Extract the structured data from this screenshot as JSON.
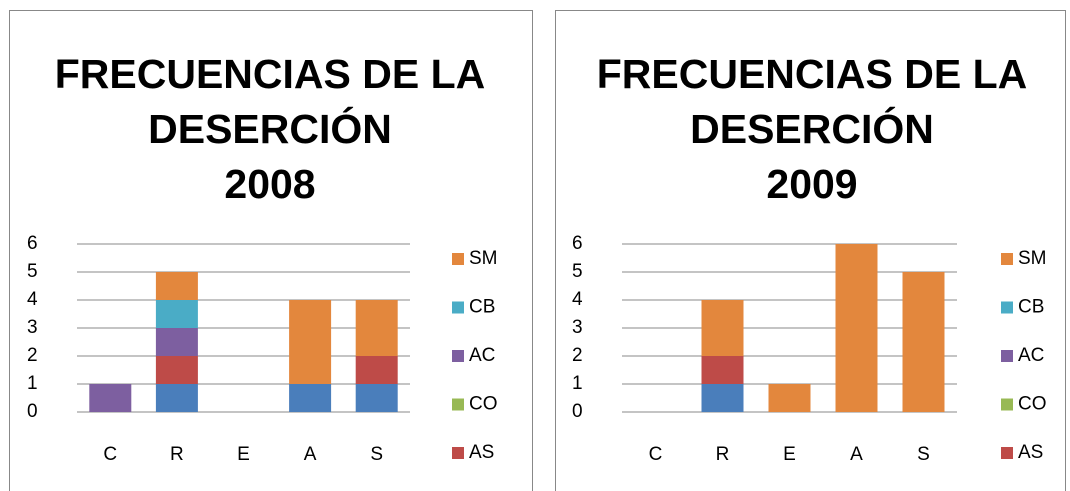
{
  "chart_data": [
    {
      "type": "bar",
      "stacked": true,
      "title": [
        "FRECUENCIAS DE LA",
        "DESERCIÓN",
        "2008"
      ],
      "categories": [
        "C",
        "R",
        "E",
        "A",
        "S"
      ],
      "series": [
        {
          "color": "#4a7ebb",
          "values": [
            0,
            1,
            0,
            1,
            1
          ]
        },
        {
          "name": "AS",
          "color": "#be4b48",
          "values": [
            0,
            1,
            0,
            0,
            1
          ]
        },
        {
          "name": "CO",
          "color": "#98b954",
          "values": [
            0,
            0,
            0,
            0,
            0
          ]
        },
        {
          "name": "AC",
          "color": "#7d5fa0",
          "values": [
            1,
            1,
            0,
            0,
            0
          ]
        },
        {
          "name": "CB",
          "color": "#4aacc6",
          "values": [
            0,
            1,
            0,
            0,
            0
          ]
        },
        {
          "name": "SM",
          "color": "#e3873d",
          "values": [
            0,
            1,
            0,
            3,
            2
          ]
        }
      ],
      "ylim": [
        0,
        6
      ],
      "yticks": [
        0,
        1,
        2,
        3,
        4,
        5,
        6
      ],
      "grid": true,
      "legend": "right"
    },
    {
      "type": "bar",
      "stacked": true,
      "title": [
        "FRECUENCIAS DE LA",
        "DESERCIÓN",
        "2009"
      ],
      "categories": [
        "C",
        "R",
        "E",
        "A",
        "S"
      ],
      "series": [
        {
          "color": "#4a7ebb",
          "values": [
            0,
            1,
            0,
            0,
            0
          ]
        },
        {
          "name": "AS",
          "color": "#be4b48",
          "values": [
            0,
            1,
            0,
            0,
            0
          ]
        },
        {
          "name": "CO",
          "color": "#98b954",
          "values": [
            0,
            0,
            0,
            0,
            0
          ]
        },
        {
          "name": "AC",
          "color": "#7d5fa0",
          "values": [
            0,
            0,
            0,
            0,
            0
          ]
        },
        {
          "name": "CB",
          "color": "#4aacc6",
          "values": [
            0,
            0,
            0,
            0,
            0
          ]
        },
        {
          "name": "SM",
          "color": "#e3873d",
          "values": [
            0,
            2,
            1,
            6,
            5
          ]
        }
      ],
      "ylim": [
        0,
        6
      ],
      "yticks": [
        0,
        1,
        2,
        3,
        4,
        5,
        6
      ],
      "grid": true,
      "legend": "right"
    }
  ]
}
